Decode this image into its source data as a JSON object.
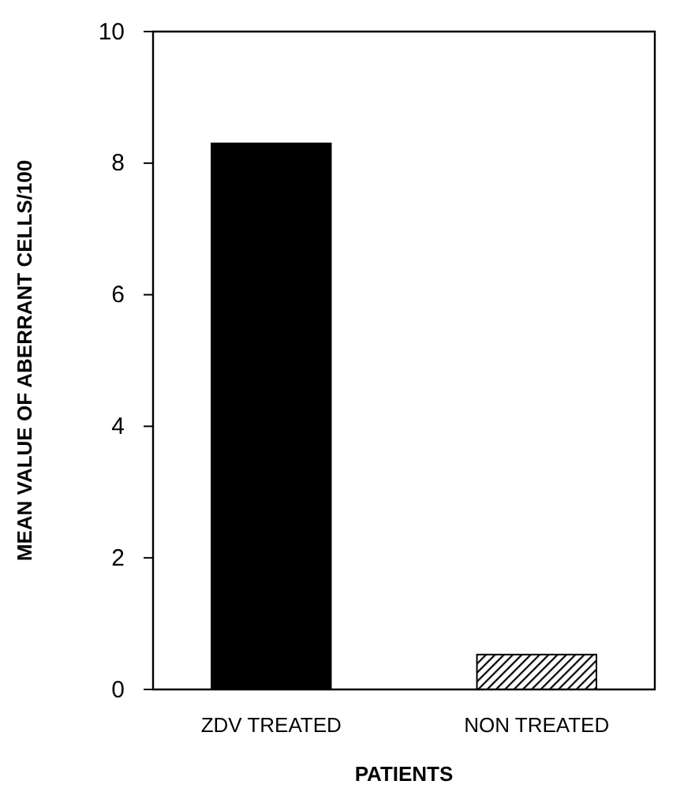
{
  "chart_data": {
    "type": "bar",
    "categories": [
      "ZDV TREATED",
      "NON TREATED"
    ],
    "values": [
      8.3,
      0.53
    ],
    "colors": [
      "#000000",
      "#000000"
    ],
    "xlabel": "PATIENTS",
    "ylabel": "MEAN VALUE OF ABERRANT CELLS/100",
    "ylim": [
      0,
      10
    ],
    "yticks": [
      0,
      2,
      4,
      6,
      8,
      10
    ],
    "grid": false
  }
}
